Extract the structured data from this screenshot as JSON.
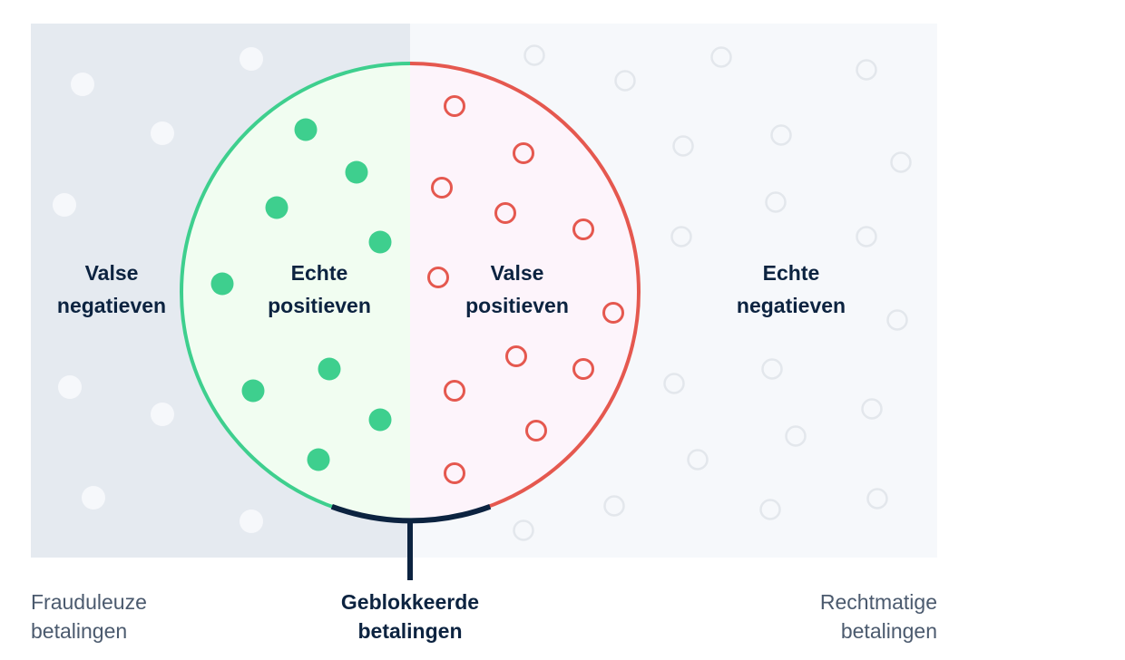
{
  "labels": {
    "false_negatives": [
      "Valse",
      "negatieven"
    ],
    "true_positives": [
      "Echte",
      "positieven"
    ],
    "false_positives": [
      "Valse",
      "positieven"
    ],
    "true_negatives": [
      "Echte",
      "negatieven"
    ]
  },
  "footer": {
    "fraudulent": [
      "Frauduleuze",
      "betalingen"
    ],
    "blocked": [
      "Geblokkeerde",
      "betalingen"
    ],
    "legit": [
      "Rechtmatige",
      "betalingen"
    ]
  },
  "colors": {
    "fraud_bg": "#e5eaf0",
    "legit_bg": "#f6f8fb",
    "green": "#3ecf8e",
    "green_fill": "#f1fdf1",
    "red": "#e5584f",
    "red_fill": "#fdf4fb",
    "navy": "#0c2340",
    "gray_ring": "#e3e7ec"
  }
}
